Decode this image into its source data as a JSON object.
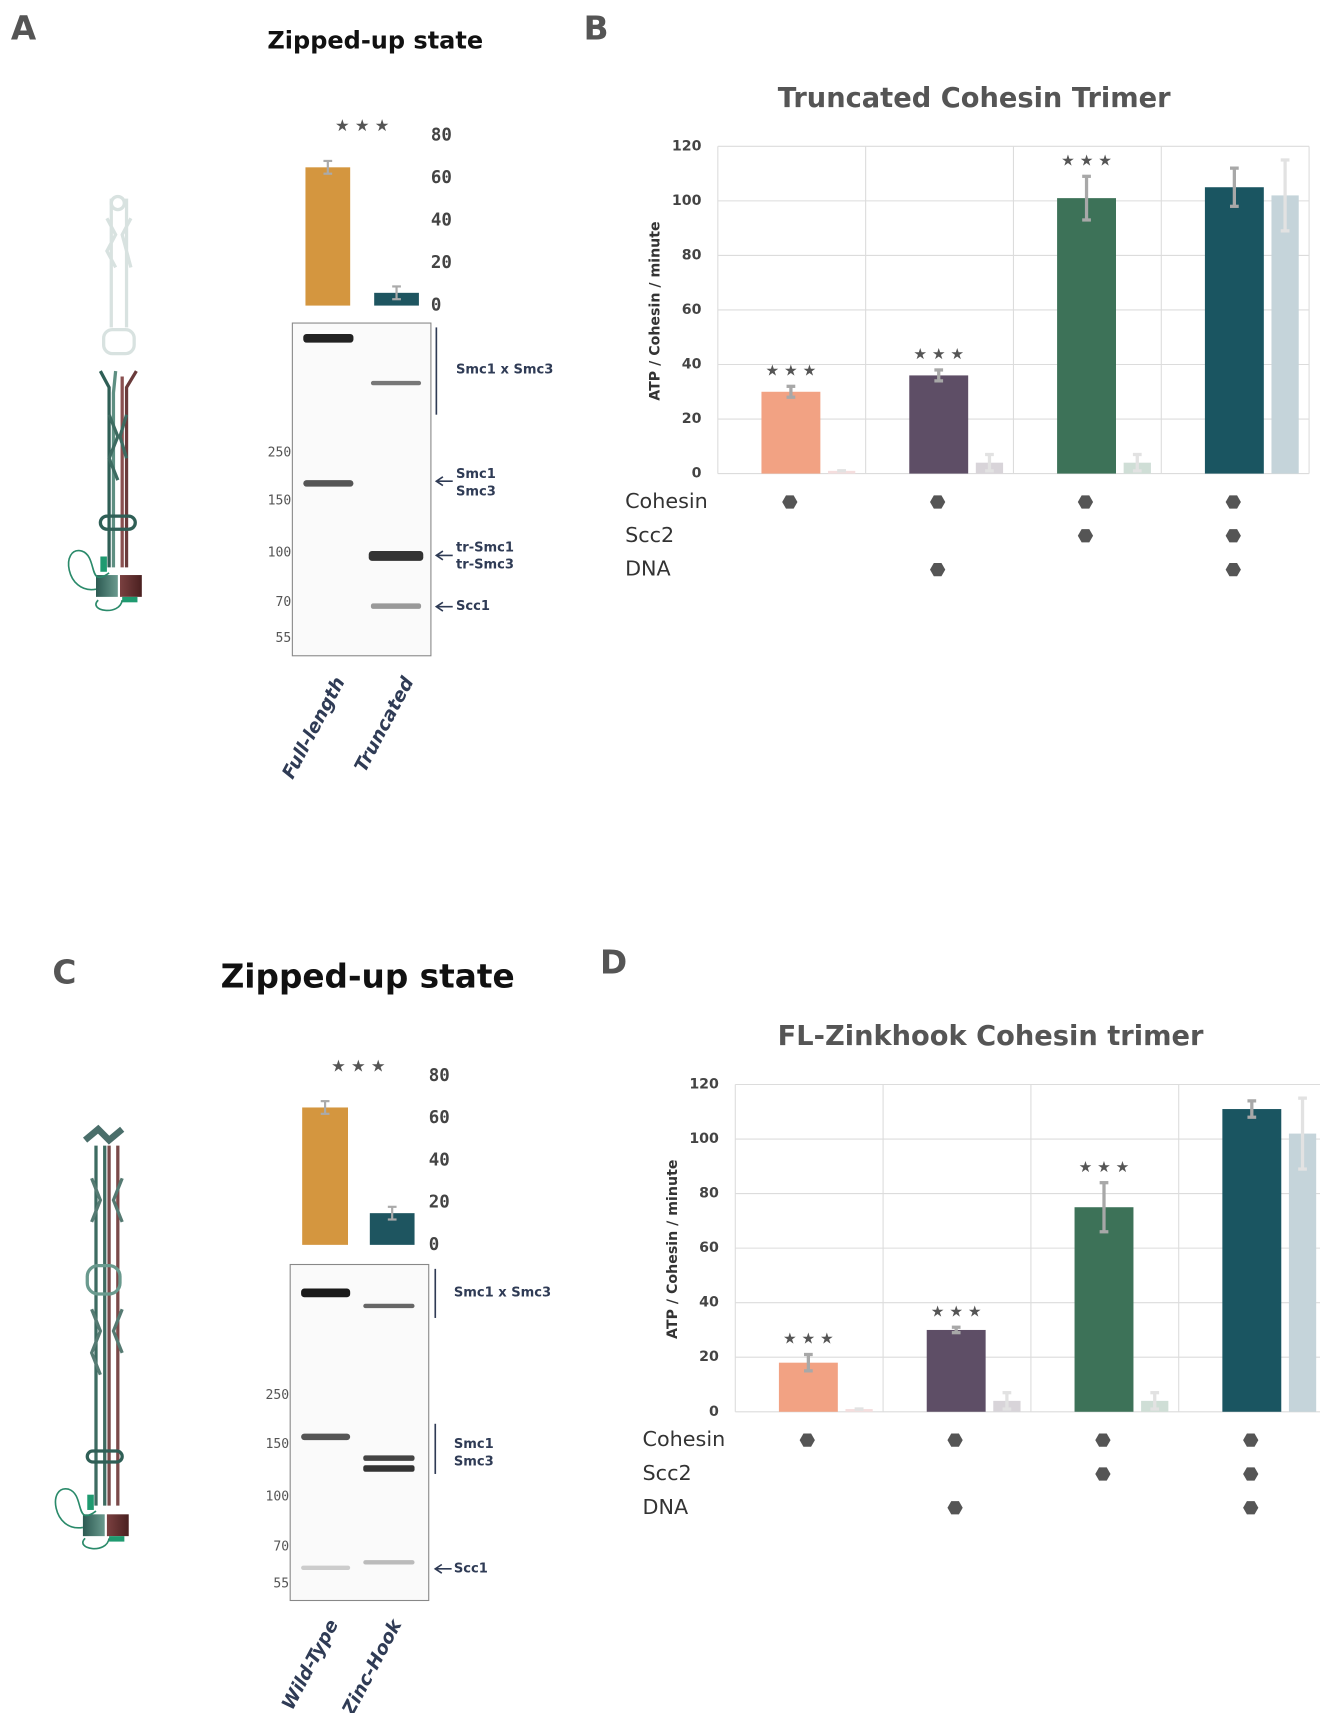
{
  "panel_labels": [
    "A",
    "B",
    "C",
    "D"
  ],
  "chart_data": [
    {
      "type": "bar",
      "title": "Zipped-up state",
      "categories": [
        "Full-length",
        "Truncated"
      ],
      "values": [
        65,
        6
      ],
      "errors": [
        3,
        3
      ],
      "colors": [
        "#d4963f",
        "#1e5560"
      ],
      "ylim": [
        0,
        80
      ],
      "yticks": [
        0,
        20,
        40,
        60,
        80
      ],
      "significance": "★ ★ ★"
    },
    {
      "type": "grouped-bar",
      "title": "Truncated Cohesin Trimer",
      "y_label": "ATP / Cohesin / minute",
      "ylim": [
        0,
        120
      ],
      "yticks": [
        0,
        20,
        40,
        60,
        80,
        100,
        120
      ],
      "grid": true,
      "series": [
        {
          "colors": [
            "#f2a283",
            "#5e4e66",
            "#3d7258",
            "#1a5561"
          ],
          "values": [
            30,
            36,
            101,
            105
          ],
          "errors": [
            2,
            2,
            8,
            7
          ]
        },
        {
          "colors": [
            "#f5dede",
            "#d8d4d9",
            "#cfded6",
            "#c5d4da"
          ],
          "values": [
            1,
            4,
            4,
            102
          ],
          "errors": [
            0,
            3,
            3,
            13
          ]
        }
      ],
      "significance": [
        "★ ★ ★",
        "★ ★ ★",
        "★ ★ ★",
        null
      ],
      "conditions": [
        {
          "label": "Cohesin",
          "present": [
            true,
            true,
            true,
            true
          ]
        },
        {
          "label": "Scc2",
          "present": [
            false,
            false,
            true,
            true
          ]
        },
        {
          "label": "DNA",
          "present": [
            false,
            true,
            false,
            true
          ]
        }
      ]
    },
    {
      "type": "bar",
      "title": "Zipped-up state",
      "categories": [
        "Wild-Type",
        "Zinc-Hook"
      ],
      "values": [
        65,
        15
      ],
      "errors": [
        3,
        3
      ],
      "colors": [
        "#d4963f",
        "#1e5560"
      ],
      "ylim": [
        0,
        80
      ],
      "yticks": [
        0,
        20,
        40,
        60,
        80
      ],
      "significance": "★ ★ ★"
    },
    {
      "type": "grouped-bar",
      "title": "FL-Zinkhook Cohesin trimer",
      "y_label": "ATP / Cohesin / minute",
      "ylim": [
        0,
        120
      ],
      "yticks": [
        0,
        20,
        40,
        60,
        80,
        100,
        120
      ],
      "grid": true,
      "series": [
        {
          "colors": [
            "#f2a283",
            "#5e4e66",
            "#3d7258",
            "#1a5561"
          ],
          "values": [
            18,
            30,
            75,
            111
          ],
          "errors": [
            3,
            1,
            9,
            3
          ]
        },
        {
          "colors": [
            "#f5dede",
            "#d8d4d9",
            "#cfded6",
            "#c5d4da"
          ],
          "values": [
            1,
            4,
            4,
            102
          ],
          "errors": [
            0,
            3,
            3,
            13
          ]
        }
      ],
      "significance": [
        "★ ★ ★",
        "★ ★ ★",
        "★ ★ ★",
        null
      ],
      "conditions": [
        {
          "label": "Cohesin",
          "present": [
            true,
            true,
            true,
            true
          ]
        },
        {
          "label": "Scc2",
          "present": [
            false,
            false,
            true,
            true
          ]
        },
        {
          "label": "DNA",
          "present": [
            false,
            true,
            false,
            true
          ]
        }
      ]
    }
  ],
  "gels": [
    {
      "markers": [
        "250",
        "150",
        "100",
        "70",
        "55"
      ],
      "bands": [
        [
          "Smc1 x Smc3"
        ],
        [
          "Smc1",
          "Smc3"
        ],
        [
          "tr-Smc1",
          "tr-Smc3"
        ],
        [
          "Scc1"
        ]
      ]
    },
    {
      "markers": [
        "250",
        "150",
        "100",
        "70",
        "55"
      ],
      "bands": [
        [
          "Smc1 x Smc3"
        ],
        [
          "Smc1",
          "Smc3"
        ],
        [
          "Scc1"
        ]
      ]
    }
  ]
}
